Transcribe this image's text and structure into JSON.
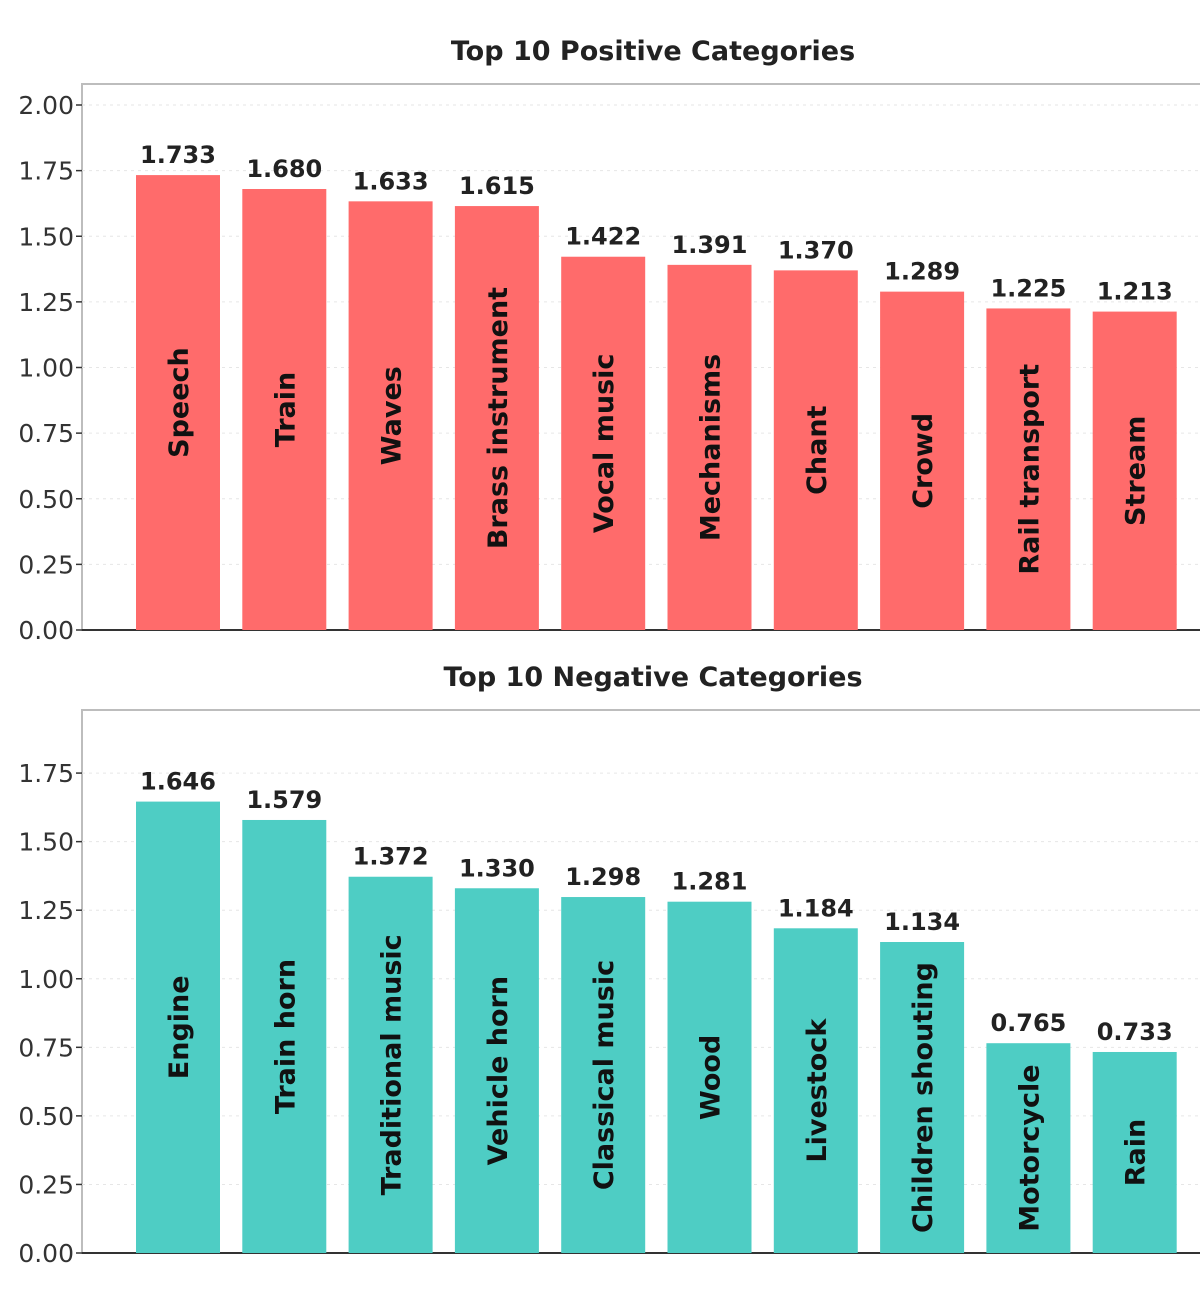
{
  "chart_data": [
    {
      "type": "bar",
      "title": "Top 10 Positive Categories",
      "xlabel": "",
      "ylabel": "",
      "categories": [
        "Speech",
        "Train",
        "Waves",
        "Brass instrument",
        "Vocal music",
        "Mechanisms",
        "Chant",
        "Crowd",
        "Rail transport",
        "Stream"
      ],
      "values": [
        1.733,
        1.68,
        1.633,
        1.615,
        1.422,
        1.391,
        1.37,
        1.289,
        1.225,
        1.213
      ],
      "value_labels": [
        "1.733",
        "1.680",
        "1.633",
        "1.615",
        "1.422",
        "1.391",
        "1.370",
        "1.289",
        "1.225",
        "1.213"
      ],
      "ylim": [
        0,
        2.08
      ],
      "yticks": [
        "0.00",
        "0.25",
        "0.50",
        "0.75",
        "1.00",
        "1.25",
        "1.50",
        "1.75",
        "2.00"
      ],
      "grid": true,
      "bar_color": "#ff6b6b"
    },
    {
      "type": "bar",
      "title": "Top 10 Negative Categories",
      "xlabel": "",
      "ylabel": "",
      "categories": [
        "Engine",
        "Train horn",
        "Traditional music",
        "Vehicle horn",
        "Classical music",
        "Wood",
        "Livestock",
        "Children shouting",
        "Motorcycle",
        "Rain"
      ],
      "values": [
        1.646,
        1.579,
        1.372,
        1.33,
        1.298,
        1.281,
        1.184,
        1.134,
        0.765,
        0.733
      ],
      "value_labels": [
        "1.646",
        "1.579",
        "1.372",
        "1.330",
        "1.298",
        "1.281",
        "1.184",
        "1.134",
        "0.765",
        "0.733"
      ],
      "ylim": [
        0,
        1.98
      ],
      "yticks": [
        "0.00",
        "0.25",
        "0.50",
        "0.75",
        "1.00",
        "1.25",
        "1.50",
        "1.75"
      ],
      "grid": true,
      "bar_color": "#4ecdc4"
    }
  ]
}
